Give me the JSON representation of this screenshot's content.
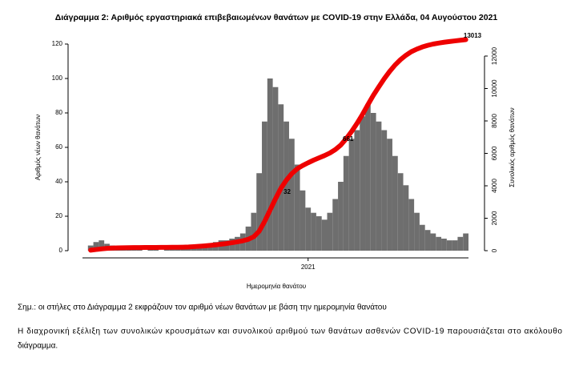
{
  "chart_data": {
    "type": "bar-line",
    "title": "Διάγραμμα 2: Αριθμός εργαστηριακά επιβεβαιωμένων θανάτων με COVID-19 στην Ελλάδα, 04 Αυγούστου 2021",
    "y_label": "Αριθμός νέων θανάτων",
    "y2_label": "Συνολικός αριθμός θανάτων",
    "x_label": "Ημερομηνία θανάτου",
    "x": [
      2020.2,
      2020.22,
      2020.24,
      2020.26,
      2020.28,
      2020.3,
      2020.32,
      2020.34,
      2020.36,
      2020.38,
      2020.4,
      2020.42,
      2020.44,
      2020.46,
      2020.48,
      2020.5,
      2020.52,
      2020.54,
      2020.56,
      2020.58,
      2020.6,
      2020.62,
      2020.64,
      2020.66,
      2020.68,
      2020.7,
      2020.72,
      2020.74,
      2020.76,
      2020.78,
      2020.8,
      2020.82,
      2020.84,
      2020.86,
      2020.88,
      2020.9,
      2020.92,
      2020.94,
      2020.96,
      2020.98,
      2021.0,
      2021.02,
      2021.04,
      2021.06,
      2021.08,
      2021.1,
      2021.12,
      2021.14,
      2021.16,
      2021.18,
      2021.2,
      2021.22,
      2021.24,
      2021.26,
      2021.28,
      2021.3,
      2021.32,
      2021.34,
      2021.36,
      2021.38,
      2021.4,
      2021.42,
      2021.44,
      2021.46,
      2021.48,
      2021.5,
      2021.52,
      2021.54,
      2021.56,
      2021.58
    ],
    "series": [
      {
        "color": "#6e6e6e",
        "axis": "y",
        "values": [
          3,
          5,
          6,
          4,
          3,
          2,
          1,
          1,
          1,
          1,
          0,
          1,
          1,
          0,
          1,
          1,
          1,
          1,
          2,
          3,
          3,
          4,
          4,
          5,
          6,
          6,
          7,
          8,
          10,
          14,
          22,
          45,
          75,
          100,
          95,
          85,
          75,
          65,
          50,
          35,
          25,
          22,
          20,
          18,
          22,
          30,
          40,
          55,
          65,
          70,
          78,
          85,
          80,
          75,
          70,
          65,
          55,
          45,
          38,
          30,
          22,
          15,
          12,
          10,
          8,
          7,
          6,
          6,
          8,
          10
        ]
      },
      {
        "color": "#ee0000",
        "axis": "y2",
        "values": [
          30,
          70,
          110,
          140,
          160,
          175,
          180,
          185,
          190,
          193,
          195,
          198,
          200,
          202,
          205,
          208,
          212,
          218,
          230,
          250,
          270,
          295,
          325,
          360,
          400,
          440,
          490,
          545,
          610,
          700,
          860,
          1200,
          1800,
          2500,
          3200,
          3850,
          4350,
          4750,
          5050,
          5250,
          5420,
          5580,
          5720,
          5860,
          6020,
          6230,
          6510,
          6900,
          7350,
          7850,
          8400,
          9000,
          9580,
          10100,
          10600,
          11050,
          11450,
          11780,
          12050,
          12270,
          12430,
          12560,
          12660,
          12740,
          12800,
          12850,
          12895,
          12935,
          12975,
          13013
        ]
      }
    ],
    "annotations": [
      "32",
      "661"
    ],
    "end_label": "13013",
    "xlim": [
      2020.17,
      2021.59
    ],
    "xticks": [
      2021
    ],
    "ylim": [
      0,
      120
    ],
    "yticks": [
      0,
      20,
      40,
      60,
      80,
      100,
      120
    ],
    "y2lim": [
      0,
      12740
    ],
    "y2ticks": [
      0,
      2000,
      4000,
      6000,
      8000,
      10000,
      12000
    ]
  },
  "text": {
    "note": "Σημ.: οι στήλες στο Διάγραμμα 2 εκφράζουν τον αριθμό νέων θανάτων με βάση την ημερομηνία θανάτου",
    "paragraph": [
      "Η διαχρονική εξέλιξη των συνολικών κρουσμάτων και συνολικού αριθμού των θανάτων ασθενών COVID-19 παρουσιάζεται στο ακόλουθο",
      "διάγραμμα."
    ]
  }
}
